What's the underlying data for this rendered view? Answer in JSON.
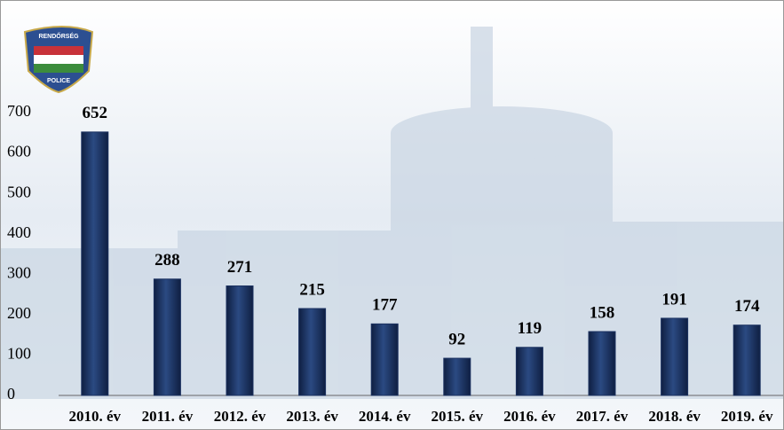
{
  "logo_texts": {
    "top": "RENDŐRSÉG",
    "bottom": "POLICE"
  },
  "chart_data": {
    "type": "bar",
    "categories": [
      "2010. év",
      "2011. év",
      "2012. év",
      "2013. év",
      "2014. év",
      "2015. év",
      "2016. év",
      "2017. év",
      "2018. év",
      "2019. év"
    ],
    "values": [
      652,
      288,
      271,
      215,
      177,
      92,
      119,
      158,
      191,
      174
    ],
    "color": "#1b3160",
    "ylim": [
      0,
      700
    ],
    "yticks": [
      0,
      100,
      200,
      300,
      400,
      500,
      600,
      700
    ],
    "grid": false
  }
}
